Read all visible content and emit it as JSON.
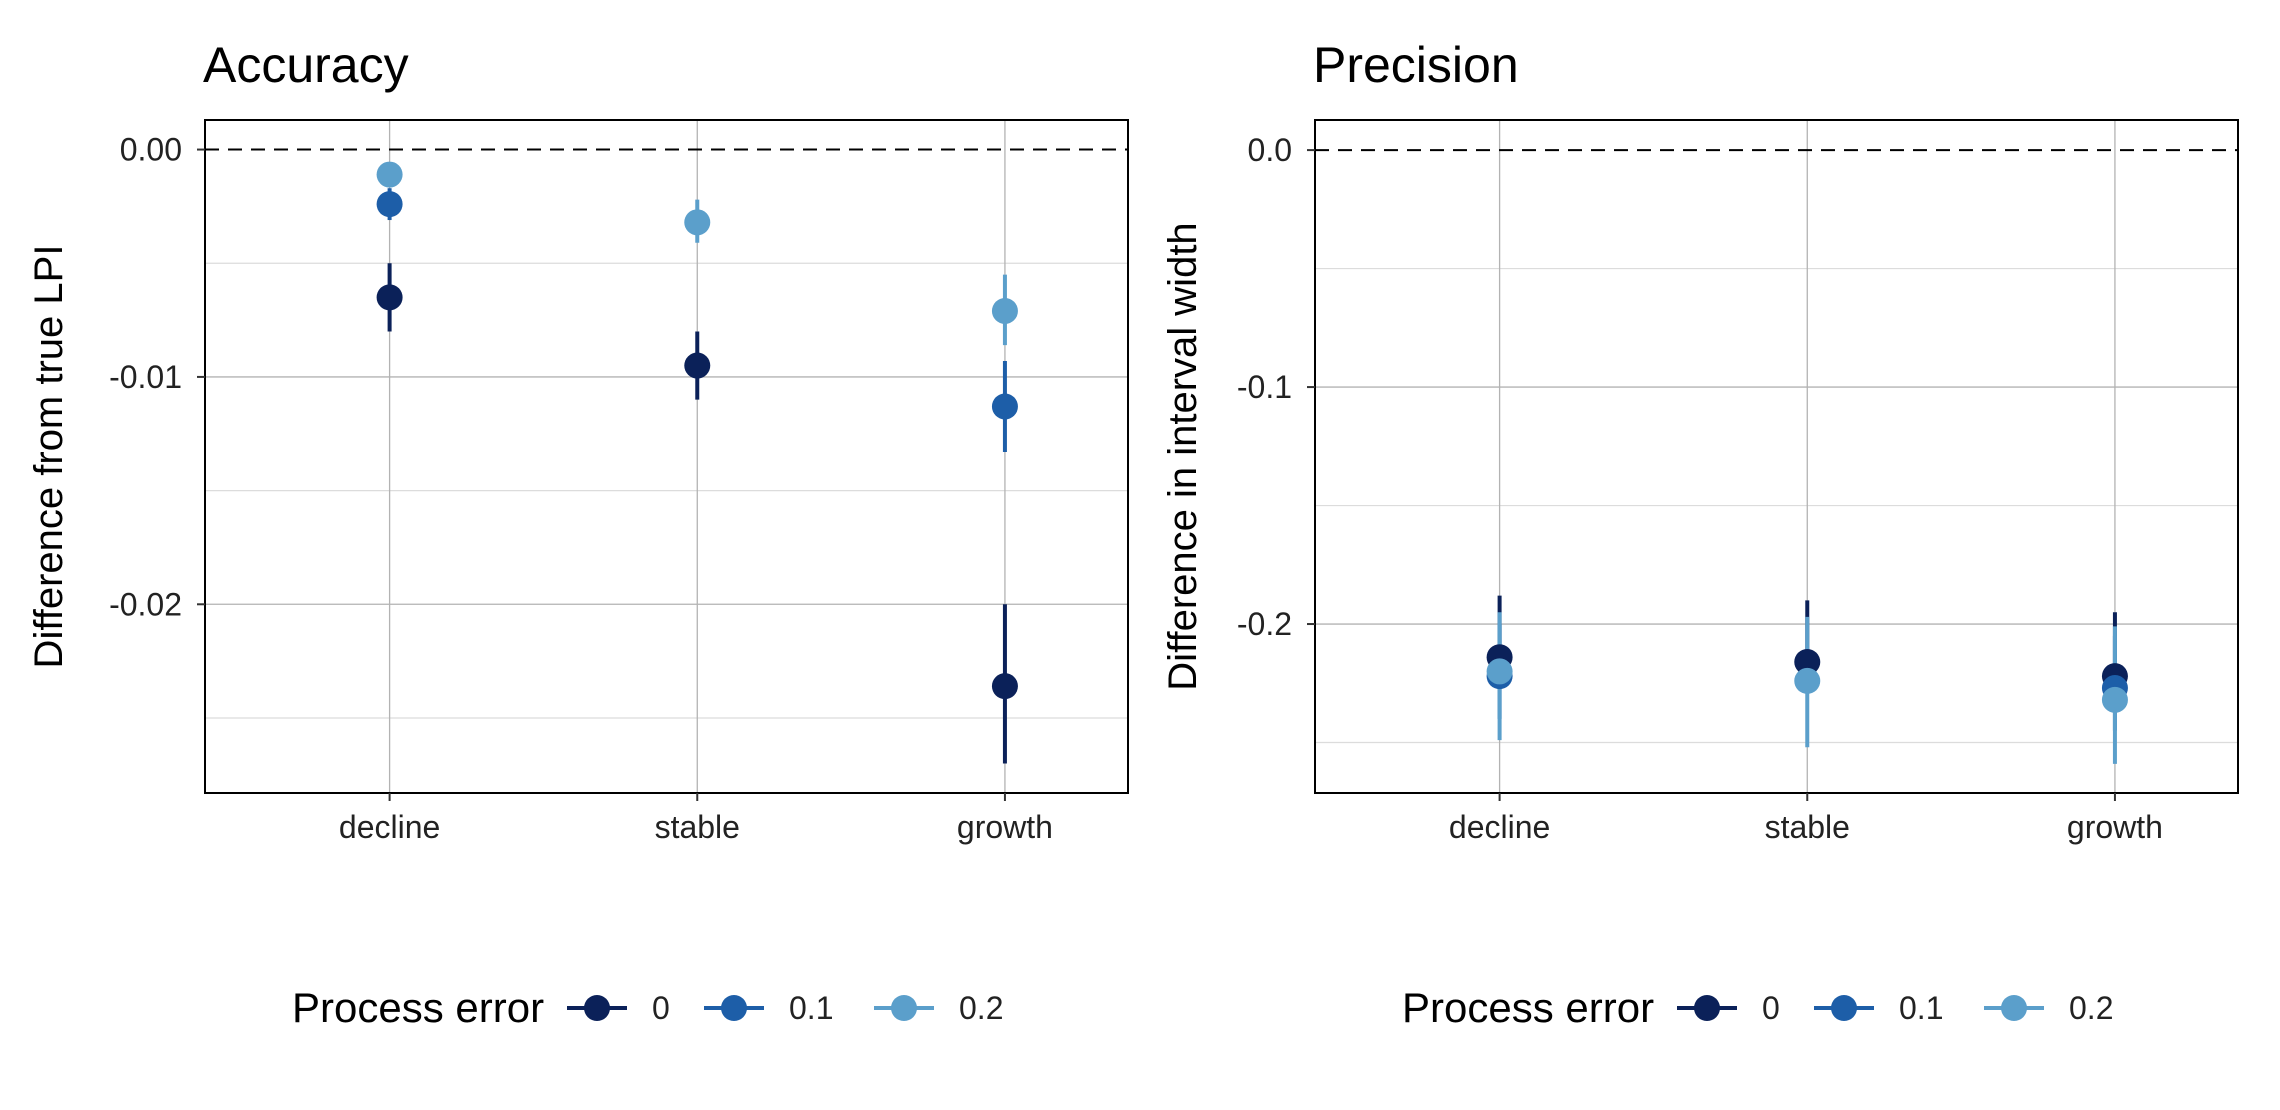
{
  "legend": {
    "title": "Process error",
    "entries": [
      {
        "label": "0",
        "color": "#0b2159"
      },
      {
        "label": "0.1",
        "color": "#1d5ea8"
      },
      {
        "label": "0.2",
        "color": "#5b9fcb"
      }
    ]
  },
  "chart_data": [
    {
      "type": "scatter",
      "title": "Accuracy",
      "xlabel": "",
      "ylabel": "Difference from true LPI",
      "categories": [
        "decline",
        "stable",
        "growth"
      ],
      "ylim": [
        -0.0283,
        0.0013
      ],
      "yticks": [
        0,
        -0.01,
        -0.02
      ],
      "ytick_labels": [
        "0.00",
        "-0.01",
        "-0.02"
      ],
      "reference_line": 0,
      "grid": true,
      "series": [
        {
          "name": "0",
          "color": "#0b2159",
          "values": [
            -0.0065,
            -0.0095,
            -0.0236
          ],
          "lower": [
            -0.008,
            -0.011,
            -0.027
          ],
          "upper": [
            -0.005,
            -0.008,
            -0.02
          ]
        },
        {
          "name": "0.1",
          "color": "#1d5ea8",
          "values": [
            -0.0024,
            null,
            -0.0113
          ],
          "lower": [
            -0.0031,
            null,
            -0.0133
          ],
          "upper": [
            -0.0017,
            null,
            -0.0093
          ]
        },
        {
          "name": "0.2",
          "color": "#5b9fcb",
          "values": [
            -0.0011,
            -0.0032,
            -0.0071
          ],
          "lower": [
            -0.0016,
            -0.0041,
            -0.0086
          ],
          "upper": [
            -0.0006,
            -0.0022,
            -0.0055
          ]
        }
      ]
    },
    {
      "type": "scatter",
      "title": "Precision",
      "xlabel": "",
      "ylabel": "Difference in interval width",
      "categories": [
        "decline",
        "stable",
        "growth"
      ],
      "ylim": [
        -0.2713,
        0.0127
      ],
      "yticks": [
        0,
        -0.1,
        -0.2
      ],
      "ytick_labels": [
        "0.0",
        "-0.1",
        "-0.2"
      ],
      "reference_line": 0,
      "grid": true,
      "series": [
        {
          "name": "0",
          "color": "#0b2159",
          "values": [
            -0.214,
            -0.216,
            -0.222
          ],
          "lower": [
            -0.226,
            -0.228,
            -0.236
          ],
          "upper": [
            -0.188,
            -0.19,
            -0.195
          ]
        },
        {
          "name": "0.1",
          "color": "#1d5ea8",
          "values": [
            -0.222,
            null,
            -0.227
          ],
          "lower": [
            -0.24,
            null,
            -0.245
          ],
          "upper": [
            -0.2,
            null,
            -0.205
          ]
        },
        {
          "name": "0.2",
          "color": "#5b9fcb",
          "values": [
            -0.22,
            -0.224,
            -0.232
          ],
          "lower": [
            -0.249,
            -0.252,
            -0.259
          ],
          "upper": [
            -0.195,
            -0.197,
            -0.201
          ]
        }
      ]
    }
  ]
}
